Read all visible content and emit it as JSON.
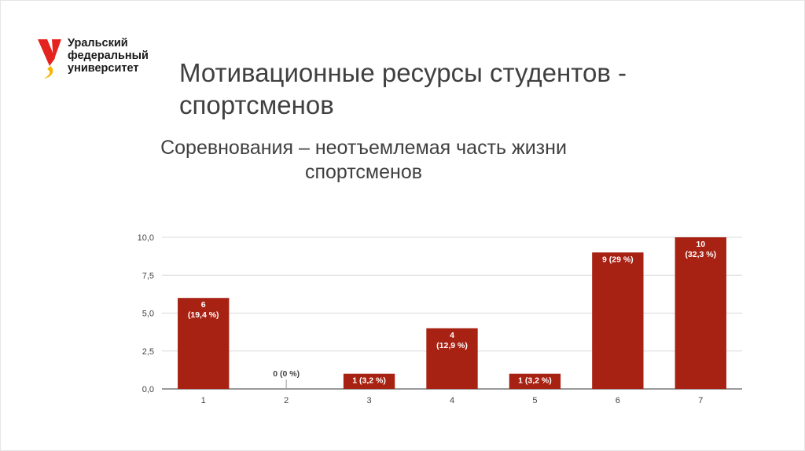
{
  "logo": {
    "lines": [
      "Уральский",
      "федеральный",
      "университет"
    ],
    "colors": {
      "red": "#e5231e",
      "yellow": "#f7b500"
    }
  },
  "title": {
    "line1": "Мотивационные ресурсы студентов -",
    "line2": "спортсменов"
  },
  "subtitle": {
    "line1": "Соревнования – неотъемлемая часть жизни",
    "line2": "спортсменов"
  },
  "chart_data": {
    "type": "bar",
    "categories": [
      "1",
      "2",
      "3",
      "4",
      "5",
      "6",
      "7"
    ],
    "values": [
      6,
      0,
      1,
      4,
      1,
      9,
      10
    ],
    "data_labels": [
      [
        "6",
        "(19,4 %)"
      ],
      [
        "0 (0 %)"
      ],
      [
        "1 (3,2 %)"
      ],
      [
        "4",
        "(12,9 %)"
      ],
      [
        "1 (3,2 %)"
      ],
      [
        "9 (29 %)"
      ],
      [
        "10",
        "(32,3 %)"
      ]
    ],
    "y_ticks": [
      "0,0",
      "2,5",
      "5,0",
      "7,5",
      "10,0"
    ],
    "y_tick_values": [
      0,
      2.5,
      5,
      7.5,
      10
    ],
    "ylim": [
      0,
      10
    ],
    "grid": true,
    "bar_color": "#a82214",
    "title": "",
    "xlabel": "",
    "ylabel": ""
  }
}
